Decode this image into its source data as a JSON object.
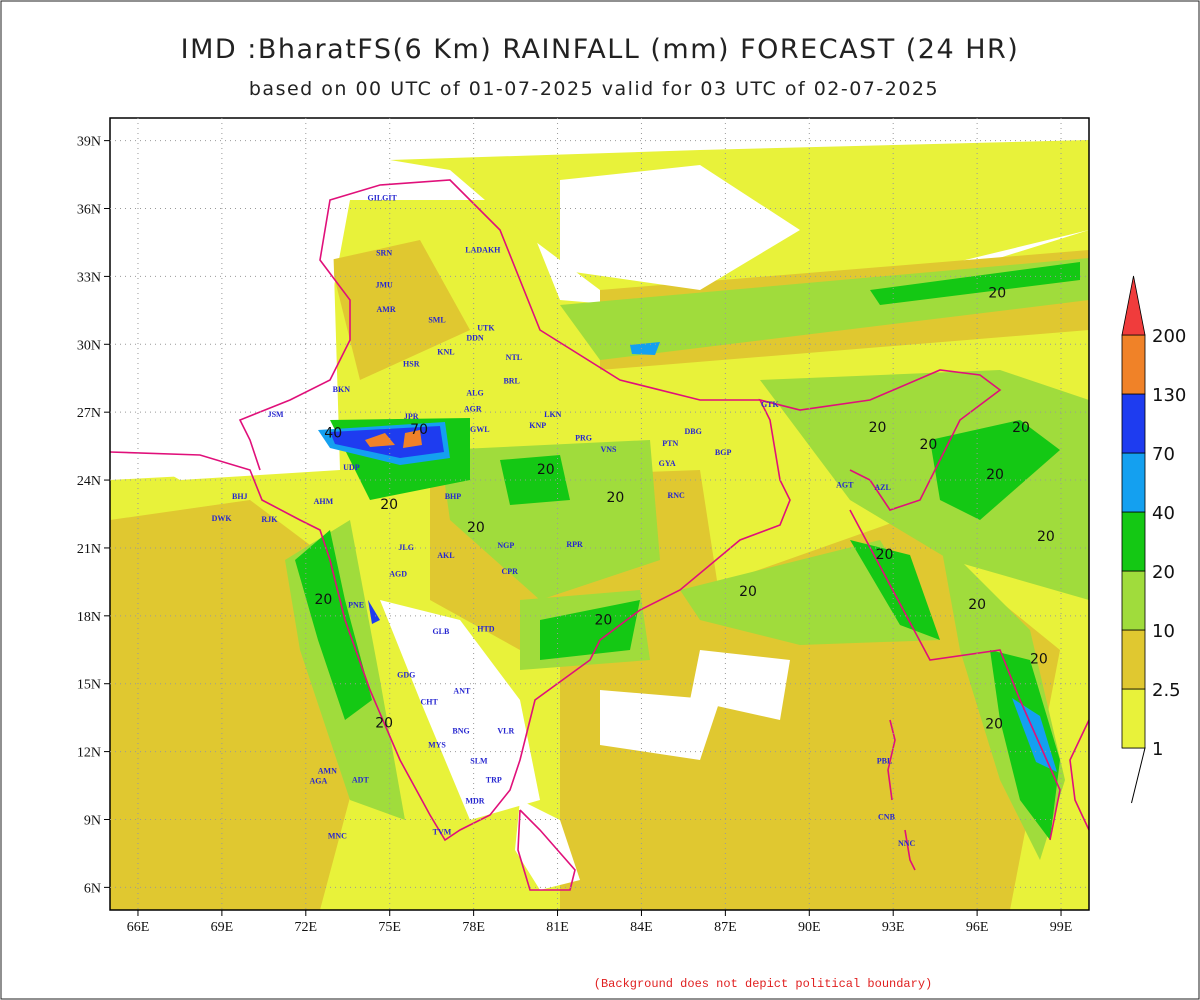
{
  "chart_data": {
    "type": "map",
    "title": "IMD :BharatFS(6 Km) RAINFALL (mm) FORECAST (24 HR)",
    "subtitle": "based on 00 UTC of 01-07-2025 valid for 03 UTC of 02-07-2025",
    "note": "(Background does not depict political boundary)",
    "xlim": [
      65,
      100
    ],
    "ylim": [
      5,
      40
    ],
    "grid": true,
    "xticks": [
      {
        "value": 66,
        "label": "66E"
      },
      {
        "value": 69,
        "label": "69E"
      },
      {
        "value": 72,
        "label": "72E"
      },
      {
        "value": 75,
        "label": "75E"
      },
      {
        "value": 78,
        "label": "78E"
      },
      {
        "value": 81,
        "label": "81E"
      },
      {
        "value": 84,
        "label": "84E"
      },
      {
        "value": 87,
        "label": "87E"
      },
      {
        "value": 90,
        "label": "90E"
      },
      {
        "value": 93,
        "label": "93E"
      },
      {
        "value": 96,
        "label": "96E"
      },
      {
        "value": 99,
        "label": "99E"
      }
    ],
    "yticks": [
      {
        "value": 6,
        "label": "6N"
      },
      {
        "value": 9,
        "label": "9N"
      },
      {
        "value": 12,
        "label": "12N"
      },
      {
        "value": 15,
        "label": "15N"
      },
      {
        "value": 18,
        "label": "18N"
      },
      {
        "value": 21,
        "label": "21N"
      },
      {
        "value": 24,
        "label": "24N"
      },
      {
        "value": 27,
        "label": "27N"
      },
      {
        "value": 30,
        "label": "30N"
      },
      {
        "value": 33,
        "label": "33N"
      },
      {
        "value": 36,
        "label": "36N"
      },
      {
        "value": 39,
        "label": "39N"
      }
    ],
    "colorbar": {
      "levels": [
        1,
        2.5,
        10,
        20,
        40,
        70,
        130,
        200
      ],
      "colors": [
        "#e8f23a",
        "#e0c830",
        "#a0dc3c",
        "#14c814",
        "#14a0f0",
        "#1e3cf0",
        "#f08228",
        "#f03c3c"
      ]
    },
    "stations": [
      {
        "name": "GILGIT",
        "lon": 74.73,
        "lat": 36.49
      },
      {
        "name": "LADAKH",
        "lon": 78.33,
        "lat": 34.19
      },
      {
        "name": "SRN",
        "lon": 74.8,
        "lat": 34.06
      },
      {
        "name": "JMU",
        "lon": 74.8,
        "lat": 32.65
      },
      {
        "name": "AMR",
        "lon": 74.87,
        "lat": 31.55
      },
      {
        "name": "SML",
        "lon": 76.69,
        "lat": 31.1
      },
      {
        "name": "UTK",
        "lon": 78.44,
        "lat": 30.75
      },
      {
        "name": "DDN",
        "lon": 78.05,
        "lat": 30.31
      },
      {
        "name": "NTL",
        "lon": 79.44,
        "lat": 29.43
      },
      {
        "name": "KNL",
        "lon": 77.01,
        "lat": 29.69
      },
      {
        "name": "HSR",
        "lon": 75.77,
        "lat": 29.16
      },
      {
        "name": "BKN",
        "lon": 73.27,
        "lat": 28.02
      },
      {
        "name": "ALG",
        "lon": 78.05,
        "lat": 27.88
      },
      {
        "name": "BRL",
        "lon": 79.36,
        "lat": 28.41
      },
      {
        "name": "JSM",
        "lon": 70.92,
        "lat": 26.91
      },
      {
        "name": "JPR",
        "lon": 75.77,
        "lat": 26.83
      },
      {
        "name": "AGR",
        "lon": 77.97,
        "lat": 27.16
      },
      {
        "name": "GWL",
        "lon": 78.22,
        "lat": 26.25
      },
      {
        "name": "LKN",
        "lon": 80.83,
        "lat": 26.91
      },
      {
        "name": "KNP",
        "lon": 80.29,
        "lat": 26.43
      },
      {
        "name": "PRG",
        "lon": 81.93,
        "lat": 25.87
      },
      {
        "name": "VNS",
        "lon": 82.82,
        "lat": 25.37
      },
      {
        "name": "PTN",
        "lon": 85.03,
        "lat": 25.63
      },
      {
        "name": "DBG",
        "lon": 85.85,
        "lat": 26.16
      },
      {
        "name": "BGP",
        "lon": 86.92,
        "lat": 25.24
      },
      {
        "name": "GYA",
        "lon": 84.92,
        "lat": 24.75
      },
      {
        "name": "GTK",
        "lon": 88.59,
        "lat": 27.36
      },
      {
        "name": "UDP",
        "lon": 73.63,
        "lat": 24.57
      },
      {
        "name": "BHP",
        "lon": 77.26,
        "lat": 23.3
      },
      {
        "name": "RNC",
        "lon": 85.24,
        "lat": 23.34
      },
      {
        "name": "BHJ",
        "lon": 69.64,
        "lat": 23.3
      },
      {
        "name": "DWK",
        "lon": 68.99,
        "lat": 22.33
      },
      {
        "name": "RJK",
        "lon": 70.7,
        "lat": 22.28
      },
      {
        "name": "AHM",
        "lon": 72.63,
        "lat": 23.08
      },
      {
        "name": "NGP",
        "lon": 79.15,
        "lat": 21.14
      },
      {
        "name": "RPR",
        "lon": 81.61,
        "lat": 21.18
      },
      {
        "name": "JLG",
        "lon": 75.59,
        "lat": 21.05
      },
      {
        "name": "AKL",
        "lon": 77.01,
        "lat": 20.69
      },
      {
        "name": "CPR",
        "lon": 79.29,
        "lat": 19.99
      },
      {
        "name": "AGD",
        "lon": 75.3,
        "lat": 19.86
      },
      {
        "name": "PNE",
        "lon": 73.8,
        "lat": 18.49
      },
      {
        "name": "HTD",
        "lon": 78.44,
        "lat": 17.43
      },
      {
        "name": "GLB",
        "lon": 76.83,
        "lat": 17.34
      },
      {
        "name": "GDG",
        "lon": 75.59,
        "lat": 15.4
      },
      {
        "name": "ANT",
        "lon": 77.58,
        "lat": 14.7
      },
      {
        "name": "CHT",
        "lon": 76.41,
        "lat": 14.21
      },
      {
        "name": "BNG",
        "lon": 77.55,
        "lat": 12.93
      },
      {
        "name": "MYS",
        "lon": 76.69,
        "lat": 12.31
      },
      {
        "name": "VLR",
        "lon": 79.15,
        "lat": 12.93
      },
      {
        "name": "SLM",
        "lon": 78.19,
        "lat": 11.61
      },
      {
        "name": "TRP",
        "lon": 78.72,
        "lat": 10.77
      },
      {
        "name": "MDR",
        "lon": 78.05,
        "lat": 9.84
      },
      {
        "name": "TVM",
        "lon": 76.87,
        "lat": 8.47
      },
      {
        "name": "MNC",
        "lon": 73.13,
        "lat": 8.3
      },
      {
        "name": "AMN",
        "lon": 72.77,
        "lat": 11.17
      },
      {
        "name": "AGA",
        "lon": 72.45,
        "lat": 10.72
      },
      {
        "name": "ADT",
        "lon": 73.95,
        "lat": 10.77
      },
      {
        "name": "PBL",
        "lon": 92.69,
        "lat": 11.6
      },
      {
        "name": "CNB",
        "lon": 92.76,
        "lat": 9.13
      },
      {
        "name": "NNC",
        "lon": 93.48,
        "lat": 7.95
      },
      {
        "name": "AGT",
        "lon": 91.27,
        "lat": 23.8
      },
      {
        "name": "AZL",
        "lon": 92.62,
        "lat": 23.69
      }
    ],
    "contour_labels": [
      {
        "value": 40,
        "lon": 72.98,
        "lat": 26.1
      },
      {
        "value": 70,
        "lon": 76.05,
        "lat": 26.25
      },
      {
        "value": 20,
        "lon": 80.58,
        "lat": 24.49
      },
      {
        "value": 20,
        "lon": 83.07,
        "lat": 23.25
      },
      {
        "value": 20,
        "lon": 78.08,
        "lat": 21.93
      },
      {
        "value": 20,
        "lon": 74.98,
        "lat": 22.94
      },
      {
        "value": 20,
        "lon": 72.63,
        "lat": 18.75
      },
      {
        "value": 20,
        "lon": 74.8,
        "lat": 13.28
      },
      {
        "value": 20,
        "lon": 82.64,
        "lat": 17.83
      },
      {
        "value": 20,
        "lon": 87.81,
        "lat": 19.1
      },
      {
        "value": 20,
        "lon": 92.69,
        "lat": 20.74
      },
      {
        "value": 20,
        "lon": 96.0,
        "lat": 18.53
      },
      {
        "value": 20,
        "lon": 98.21,
        "lat": 16.11
      },
      {
        "value": 20,
        "lon": 96.61,
        "lat": 13.24
      },
      {
        "value": 20,
        "lon": 98.46,
        "lat": 21.53
      },
      {
        "value": 20,
        "lon": 96.64,
        "lat": 24.27
      },
      {
        "value": 20,
        "lon": 97.57,
        "lat": 26.34
      },
      {
        "value": 20,
        "lon": 92.44,
        "lat": 26.34
      },
      {
        "value": 20,
        "lon": 94.26,
        "lat": 25.59
      },
      {
        "value": 20,
        "lon": 96.72,
        "lat": 32.29
      }
    ]
  }
}
